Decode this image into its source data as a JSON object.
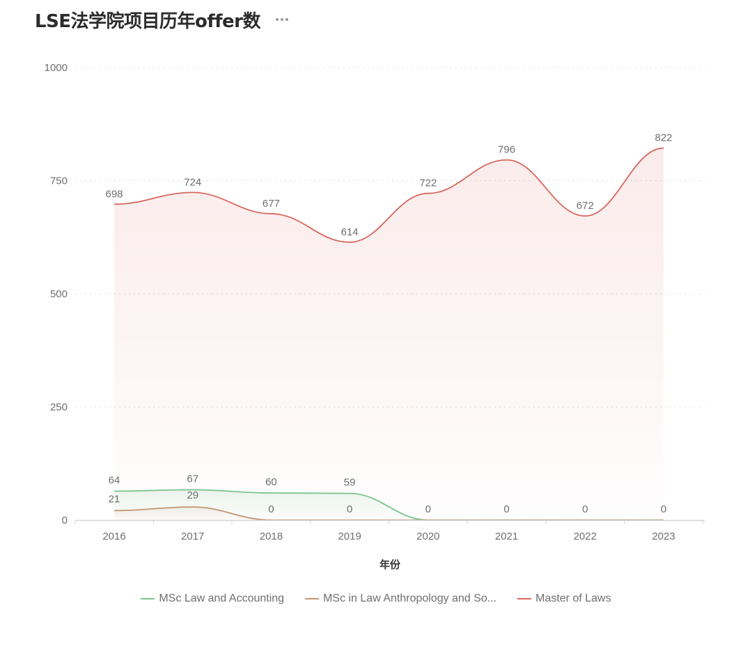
{
  "header": {
    "title": "LSE法学院项目历年offer数",
    "more_icon": "more-horizontal-icon"
  },
  "axis": {
    "x_title": "年份",
    "y_ticks": [
      "0",
      "250",
      "500",
      "750",
      "1000"
    ],
    "x_ticks": [
      "2016",
      "2017",
      "2018",
      "2019",
      "2020",
      "2021",
      "2022",
      "2023"
    ]
  },
  "legend": [
    {
      "label": "MSc Law and Accounting",
      "color": "#7cc48f"
    },
    {
      "label": "MSc in Law Anthropology and So...",
      "color": "#c29473"
    },
    {
      "label": "Master of Laws",
      "color": "#d9675f"
    }
  ],
  "chart_data": {
    "type": "line",
    "title": "LSE法学院项目历年offer数",
    "xlabel": "年份",
    "ylabel": "",
    "ylim": [
      0,
      1000
    ],
    "grid": true,
    "legend_position": "bottom",
    "categories": [
      "2016",
      "2017",
      "2018",
      "2019",
      "2020",
      "2021",
      "2022",
      "2023"
    ],
    "series": [
      {
        "name": "MSc Law and Accounting",
        "color": "#7cc48f",
        "values": [
          64,
          67,
          60,
          59,
          0,
          0,
          0,
          0
        ]
      },
      {
        "name": "MSc in Law Anthropology and So...",
        "color": "#c29473",
        "values": [
          21,
          29,
          0,
          0,
          0,
          0,
          0,
          0
        ]
      },
      {
        "name": "Master of Laws",
        "color": "#d9675f",
        "values": [
          698,
          724,
          677,
          614,
          722,
          796,
          672,
          822
        ]
      }
    ]
  }
}
